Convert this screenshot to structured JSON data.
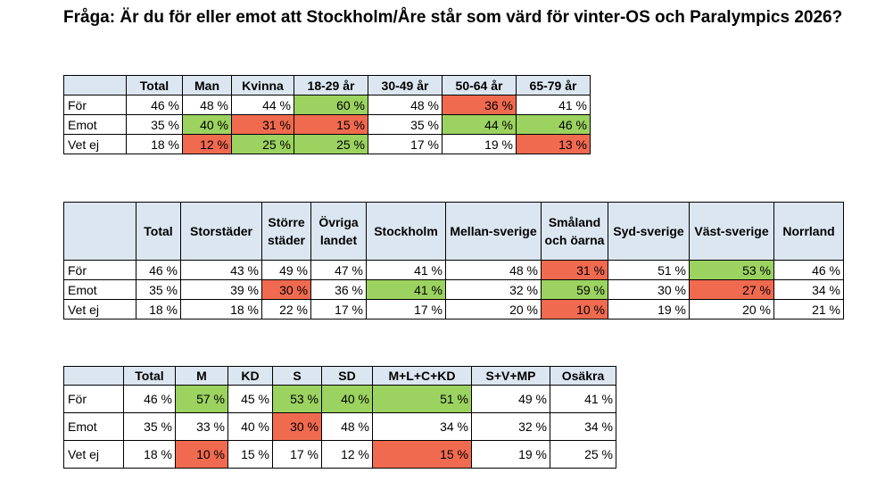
{
  "title": "Fråga: Är du för eller emot att Stockholm/Åre  står som värd för vinter-OS och Paralympics  2026?",
  "colors": {
    "header": "#dce6f1",
    "green": "#9bd260",
    "red": "#f06a50"
  },
  "tables": [
    {
      "headers": [
        "",
        "Total",
        "Man",
        "Kvinna",
        "18-29 år",
        "30-49 år",
        "50-64 år",
        "65-79 år"
      ],
      "rows": [
        {
          "label": "För",
          "cells": [
            {
              "v": "46 %",
              "c": ""
            },
            {
              "v": "48 %",
              "c": ""
            },
            {
              "v": "44 %",
              "c": ""
            },
            {
              "v": "60 %",
              "c": "g"
            },
            {
              "v": "48 %",
              "c": ""
            },
            {
              "v": "36 %",
              "c": "r"
            },
            {
              "v": "41 %",
              "c": ""
            }
          ]
        },
        {
          "label": "Emot",
          "cells": [
            {
              "v": "35 %",
              "c": ""
            },
            {
              "v": "40 %",
              "c": "g"
            },
            {
              "v": "31 %",
              "c": "r"
            },
            {
              "v": "15 %",
              "c": "r"
            },
            {
              "v": "35 %",
              "c": ""
            },
            {
              "v": "44 %",
              "c": "g"
            },
            {
              "v": "46 %",
              "c": "g"
            }
          ]
        },
        {
          "label": "Vet ej",
          "cells": [
            {
              "v": "18 %",
              "c": ""
            },
            {
              "v": "12 %",
              "c": "r"
            },
            {
              "v": "25 %",
              "c": "g"
            },
            {
              "v": "25 %",
              "c": "g"
            },
            {
              "v": "17 %",
              "c": ""
            },
            {
              "v": "19 %",
              "c": ""
            },
            {
              "v": "13 %",
              "c": "r"
            }
          ]
        }
      ]
    },
    {
      "headers": [
        "",
        "Total",
        "Storstäder",
        "Större städer",
        "Övriga landet",
        "Stockholm",
        "Mellan-sverige",
        "Småland och öarna",
        "Syd-sverige",
        "Väst-sverige",
        "Norrland"
      ],
      "rows": [
        {
          "label": "För",
          "cells": [
            {
              "v": "46 %",
              "c": ""
            },
            {
              "v": "43 %",
              "c": ""
            },
            {
              "v": "49 %",
              "c": ""
            },
            {
              "v": "47 %",
              "c": ""
            },
            {
              "v": "41 %",
              "c": ""
            },
            {
              "v": "48 %",
              "c": ""
            },
            {
              "v": "31 %",
              "c": "r"
            },
            {
              "v": "51 %",
              "c": ""
            },
            {
              "v": "53 %",
              "c": "g"
            },
            {
              "v": "46 %",
              "c": ""
            }
          ]
        },
        {
          "label": "Emot",
          "cells": [
            {
              "v": "35 %",
              "c": ""
            },
            {
              "v": "39 %",
              "c": ""
            },
            {
              "v": "30 %",
              "c": "r"
            },
            {
              "v": "36 %",
              "c": ""
            },
            {
              "v": "41 %",
              "c": "g"
            },
            {
              "v": "32 %",
              "c": ""
            },
            {
              "v": "59 %",
              "c": "g"
            },
            {
              "v": "30 %",
              "c": ""
            },
            {
              "v": "27 %",
              "c": "r"
            },
            {
              "v": "34 %",
              "c": ""
            }
          ]
        },
        {
          "label": "Vet ej",
          "cells": [
            {
              "v": "18 %",
              "c": ""
            },
            {
              "v": "18 %",
              "c": ""
            },
            {
              "v": "22 %",
              "c": ""
            },
            {
              "v": "17 %",
              "c": ""
            },
            {
              "v": "17 %",
              "c": ""
            },
            {
              "v": "20 %",
              "c": ""
            },
            {
              "v": "10 %",
              "c": "r"
            },
            {
              "v": "19 %",
              "c": ""
            },
            {
              "v": "20 %",
              "c": ""
            },
            {
              "v": "21 %",
              "c": ""
            }
          ]
        }
      ]
    },
    {
      "headers": [
        "",
        "Total",
        "M",
        "KD",
        "S",
        "SD",
        "M+L+C+KD",
        "S+V+MP",
        "Osäkra"
      ],
      "rows": [
        {
          "label": "För",
          "cells": [
            {
              "v": "46 %",
              "c": ""
            },
            {
              "v": "57 %",
              "c": "g"
            },
            {
              "v": "45 %",
              "c": ""
            },
            {
              "v": "53 %",
              "c": "g"
            },
            {
              "v": "40 %",
              "c": "g"
            },
            {
              "v": "51 %",
              "c": "g"
            },
            {
              "v": "49 %",
              "c": ""
            },
            {
              "v": "41 %",
              "c": ""
            }
          ]
        },
        {
          "label": "Emot",
          "cells": [
            {
              "v": "35 %",
              "c": ""
            },
            {
              "v": "33 %",
              "c": ""
            },
            {
              "v": "40 %",
              "c": ""
            },
            {
              "v": "30 %",
              "c": "r"
            },
            {
              "v": "48 %",
              "c": ""
            },
            {
              "v": "34 %",
              "c": ""
            },
            {
              "v": "32 %",
              "c": ""
            },
            {
              "v": "34 %",
              "c": ""
            }
          ]
        },
        {
          "label": "Vet ej",
          "cells": [
            {
              "v": "18 %",
              "c": ""
            },
            {
              "v": "10 %",
              "c": "r"
            },
            {
              "v": "15 %",
              "c": ""
            },
            {
              "v": "17 %",
              "c": ""
            },
            {
              "v": "12 %",
              "c": ""
            },
            {
              "v": "15 %",
              "c": "r"
            },
            {
              "v": "19 %",
              "c": ""
            },
            {
              "v": "25 %",
              "c": ""
            }
          ]
        }
      ]
    }
  ]
}
